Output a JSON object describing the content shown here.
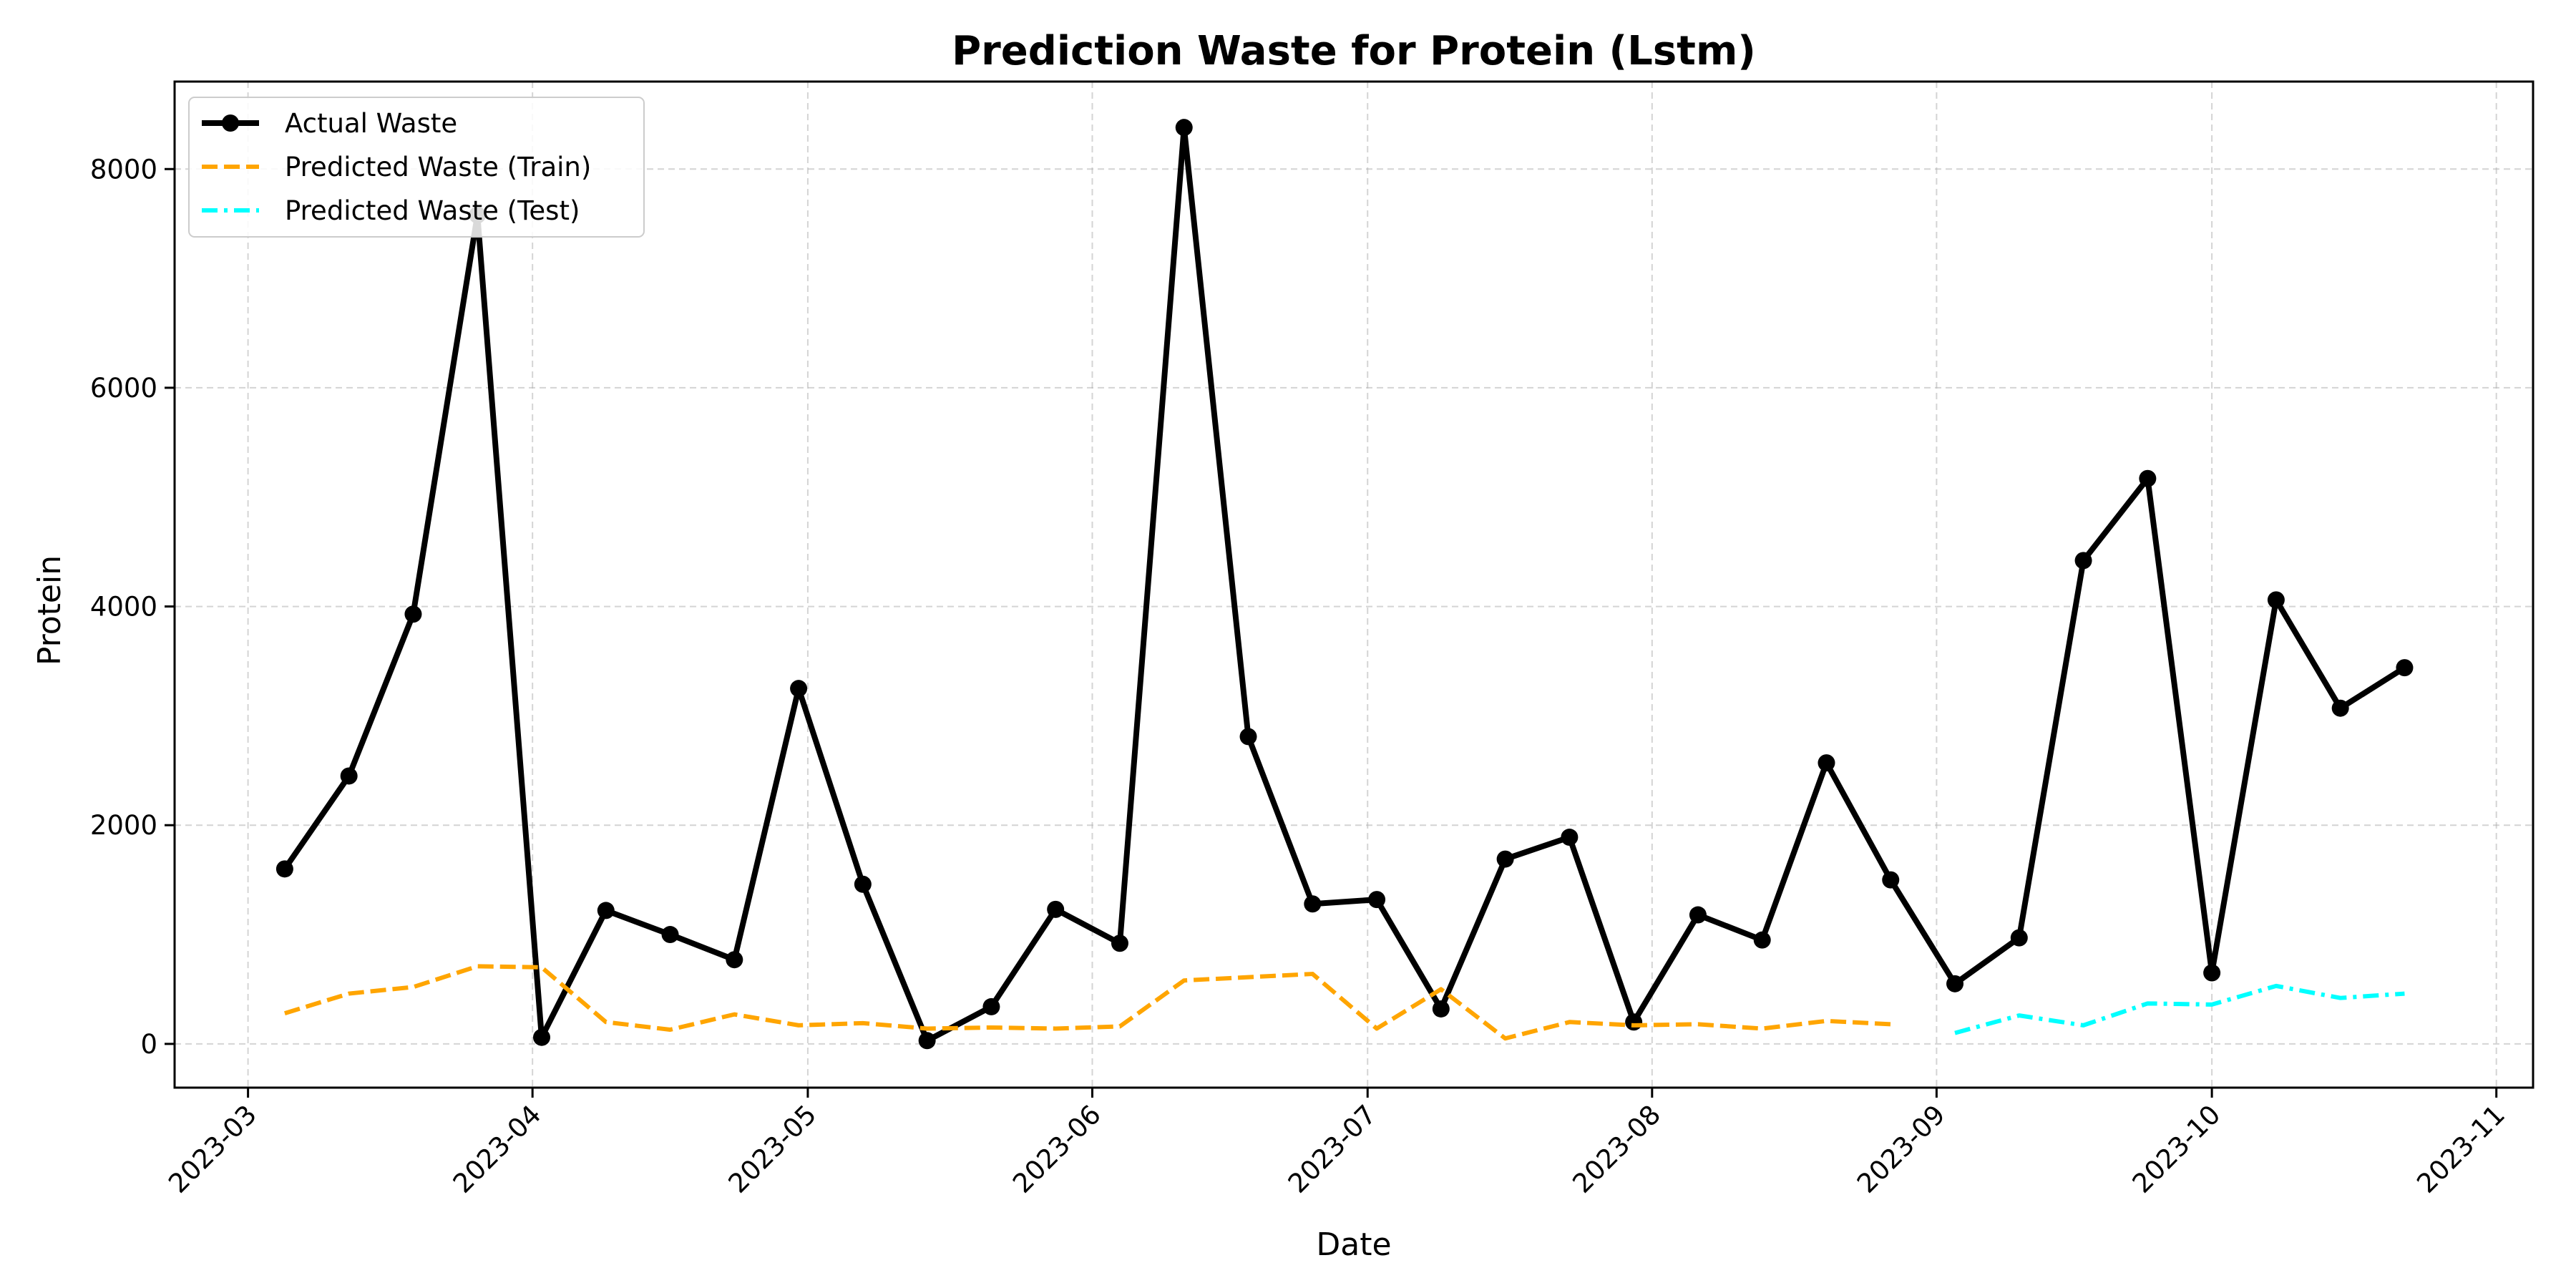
{
  "chart_data": {
    "type": "line",
    "title": "Prediction Waste for Protein (Lstm)",
    "xlabel": "Date",
    "ylabel": "Protein",
    "xlim": [
      "2023-02-21",
      "2023-11-05"
    ],
    "ylim": [
      -400,
      8800
    ],
    "x_ticks": [
      "2023-03",
      "2023-04",
      "2023-05",
      "2023-06",
      "2023-07",
      "2023-08",
      "2023-09",
      "2023-10",
      "2023-11"
    ],
    "y_ticks": [
      0,
      2000,
      4000,
      6000,
      8000
    ],
    "grid": true,
    "legend_position": "upper-left",
    "series": [
      {
        "name": "Actual Waste",
        "color": "#000000",
        "style": "solid-with-markers",
        "x": [
          "2023-03-05",
          "2023-03-12",
          "2023-03-19",
          "2023-03-26",
          "2023-04-02",
          "2023-04-09",
          "2023-04-16",
          "2023-04-23",
          "2023-04-30",
          "2023-05-07",
          "2023-05-14",
          "2023-05-21",
          "2023-05-28",
          "2023-06-04",
          "2023-06-11",
          "2023-06-18",
          "2023-06-25",
          "2023-07-02",
          "2023-07-09",
          "2023-07-16",
          "2023-07-23",
          "2023-07-30",
          "2023-08-06",
          "2023-08-13",
          "2023-08-20",
          "2023-08-27",
          "2023-09-03",
          "2023-09-10",
          "2023-09-17",
          "2023-09-24",
          "2023-10-01",
          "2023-10-08",
          "2023-10-15",
          "2023-10-22"
        ],
        "y": [
          1600,
          2450,
          3930,
          7580,
          60,
          1220,
          1000,
          770,
          3250,
          1460,
          30,
          340,
          1230,
          920,
          8380,
          2810,
          1280,
          1320,
          320,
          1690,
          1890,
          200,
          1180,
          950,
          2570,
          1500,
          550,
          970,
          4420,
          5170,
          650,
          4060,
          3070,
          3440
        ]
      },
      {
        "name": "Predicted Waste (Train)",
        "color": "#FFA500",
        "style": "dashed",
        "x": [
          "2023-03-05",
          "2023-03-12",
          "2023-03-19",
          "2023-03-26",
          "2023-04-02",
          "2023-04-09",
          "2023-04-16",
          "2023-04-23",
          "2023-04-30",
          "2023-05-07",
          "2023-05-14",
          "2023-05-21",
          "2023-05-28",
          "2023-06-04",
          "2023-06-11",
          "2023-06-18",
          "2023-06-25",
          "2023-07-02",
          "2023-07-09",
          "2023-07-16",
          "2023-07-23",
          "2023-07-30",
          "2023-08-06",
          "2023-08-13",
          "2023-08-20",
          "2023-08-27"
        ],
        "y": [
          280,
          460,
          520,
          710,
          700,
          200,
          130,
          270,
          170,
          190,
          140,
          150,
          140,
          160,
          580,
          610,
          640,
          140,
          500,
          50,
          200,
          170,
          180,
          140,
          210,
          180
        ]
      },
      {
        "name": "Predicted Waste (Test)",
        "color": "#00FFFF",
        "style": "dash-dot",
        "x": [
          "2023-09-03",
          "2023-09-10",
          "2023-09-17",
          "2023-09-24",
          "2023-10-01",
          "2023-10-08",
          "2023-10-15",
          "2023-10-22"
        ],
        "y": [
          100,
          260,
          170,
          370,
          360,
          530,
          420,
          460
        ]
      }
    ]
  }
}
